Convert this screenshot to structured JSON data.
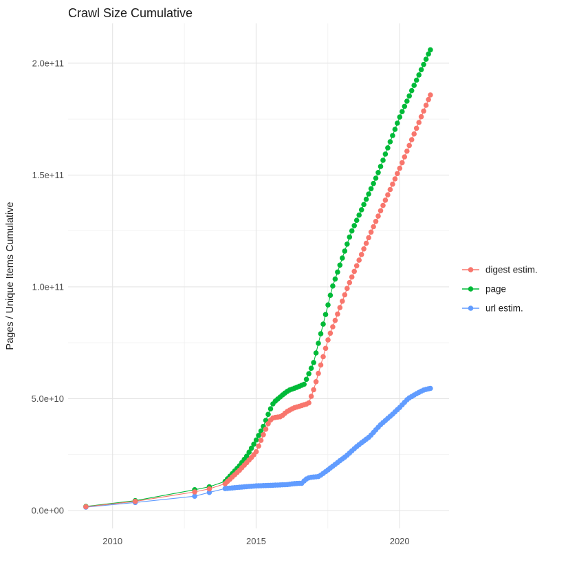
{
  "figure": {
    "background": "#ffffff",
    "panel_background": "#ffffff",
    "grid_major_color": "#e4e4e4",
    "grid_minor_color": "#efefef",
    "tick_text_color": "#4d4d4d",
    "text_color": "#1a1a1a"
  },
  "chart_data": {
    "type": "line",
    "subtype": "scatter-line-cumulative",
    "title": "Crawl Size Cumulative",
    "xlabel": "",
    "ylabel": "Pages / Unique Items Cumulative",
    "grid": true,
    "legend_position": "right",
    "x_axis": {
      "domain": [
        2008.45,
        2021.72
      ],
      "major_ticks": [
        2010,
        2015,
        2020
      ],
      "tick_labels": [
        "2010",
        "2015",
        "2020"
      ],
      "minor_ticks": [
        2012.5,
        2017.5
      ]
    },
    "y_axis": {
      "domain": [
        -8000000000.0,
        217800000000.0
      ],
      "major_ticks": [
        0,
        50000000000.0,
        100000000000.0,
        150000000000.0,
        200000000000.0
      ],
      "tick_labels": [
        "0.0e+00",
        "5.0e+10",
        "1.0e+11",
        "1.5e+11",
        "2.0e+11"
      ],
      "minor_ticks": [
        25000000000.0,
        75000000000.0,
        125000000000.0,
        175000000000.0
      ]
    },
    "sample_step_years": 0.08333,
    "series": [
      {
        "id": "digest",
        "name": "digest estim.",
        "color": "#F8766D",
        "z": 3,
        "early_points": [
          [
            2009.07,
            1700000000.0
          ],
          [
            2010.79,
            4100000000.0
          ],
          [
            2012.86,
            8300000000.0
          ],
          [
            2013.37,
            9700000000.0
          ]
        ],
        "anchors": [
          [
            2013.92,
            12000000000.0
          ],
          [
            2014.42,
            18000000000.0
          ],
          [
            2014.88,
            24300000000.0
          ],
          [
            2015.0,
            26200000000.0
          ],
          [
            2015.25,
            33800000000.0
          ],
          [
            2015.46,
            40000000000.0
          ],
          [
            2015.6,
            41500000000.0
          ],
          [
            2015.87,
            42000000000.0
          ],
          [
            2016.06,
            44100000000.0
          ],
          [
            2016.3,
            45800000000.0
          ],
          [
            2016.6,
            47000000000.0
          ],
          [
            2016.83,
            47900000000.0
          ],
          [
            2017.02,
            54600000000.0
          ],
          [
            2017.52,
            77000000000.0
          ],
          [
            2018.19,
            100000000000.0
          ],
          [
            2019.02,
            125000000000.0
          ],
          [
            2020.02,
            153500000000.0
          ],
          [
            2021.07,
            185800000000.0
          ]
        ]
      },
      {
        "id": "page",
        "name": "page",
        "color": "#00BA38",
        "z": 1,
        "early_points": [
          [
            2009.07,
            1800000000.0
          ],
          [
            2010.79,
            4400000000.0
          ],
          [
            2012.86,
            9300000000.0
          ],
          [
            2013.37,
            10600000000.0
          ]
        ],
        "anchors": [
          [
            2013.92,
            13000000000.0
          ],
          [
            2014.42,
            20000000000.0
          ],
          [
            2014.67,
            24300000000.0
          ],
          [
            2014.96,
            30500000000.0
          ],
          [
            2015.25,
            37500000000.0
          ],
          [
            2015.46,
            44300000000.0
          ],
          [
            2015.61,
            48300000000.0
          ],
          [
            2015.94,
            51900000000.0
          ],
          [
            2016.13,
            53700000000.0
          ],
          [
            2016.4,
            55000000000.0
          ],
          [
            2016.68,
            56500000000.0
          ],
          [
            2017.0,
            66000000000.0
          ],
          [
            2017.66,
            100000000000.0
          ],
          [
            2018.3,
            124000000000.0
          ],
          [
            2019.22,
            150000000000.0
          ],
          [
            2020.02,
            176500000000.0
          ],
          [
            2021.07,
            206000000000.0
          ]
        ]
      },
      {
        "id": "url",
        "name": "url estim.",
        "color": "#619CFF",
        "z": 2,
        "early_points": [
          [
            2009.07,
            1500000000.0
          ],
          [
            2010.79,
            3600000000.0
          ],
          [
            2012.86,
            6400000000.0
          ],
          [
            2013.37,
            8100000000.0
          ]
        ],
        "anchors": [
          [
            2013.92,
            9800000000.0
          ],
          [
            2014.5,
            10500000000.0
          ],
          [
            2015.0,
            11000000000.0
          ],
          [
            2015.6,
            11300000000.0
          ],
          [
            2016.1,
            11600000000.0
          ],
          [
            2016.3,
            12000000000.0
          ],
          [
            2016.6,
            12200000000.0
          ],
          [
            2016.72,
            13900000000.0
          ],
          [
            2016.87,
            14800000000.0
          ],
          [
            2017.18,
            15200000000.0
          ],
          [
            2017.35,
            16700000000.0
          ],
          [
            2017.76,
            20700000000.0
          ],
          [
            2018.14,
            24400000000.0
          ],
          [
            2018.54,
            29000000000.0
          ],
          [
            2018.95,
            33000000000.0
          ],
          [
            2019.33,
            38300000000.0
          ],
          [
            2019.74,
            42900000000.0
          ],
          [
            2020.02,
            46300000000.0
          ],
          [
            2020.29,
            50000000000.0
          ],
          [
            2020.62,
            52500000000.0
          ],
          [
            2020.86,
            54000000000.0
          ],
          [
            2021.07,
            54600000000.0
          ]
        ]
      }
    ],
    "legend": {
      "entries": [
        {
          "label": "digest estim.",
          "color": "#F8766D"
        },
        {
          "label": "page",
          "color": "#00BA38"
        },
        {
          "label": "url estim.",
          "color": "#619CFF"
        }
      ]
    }
  }
}
